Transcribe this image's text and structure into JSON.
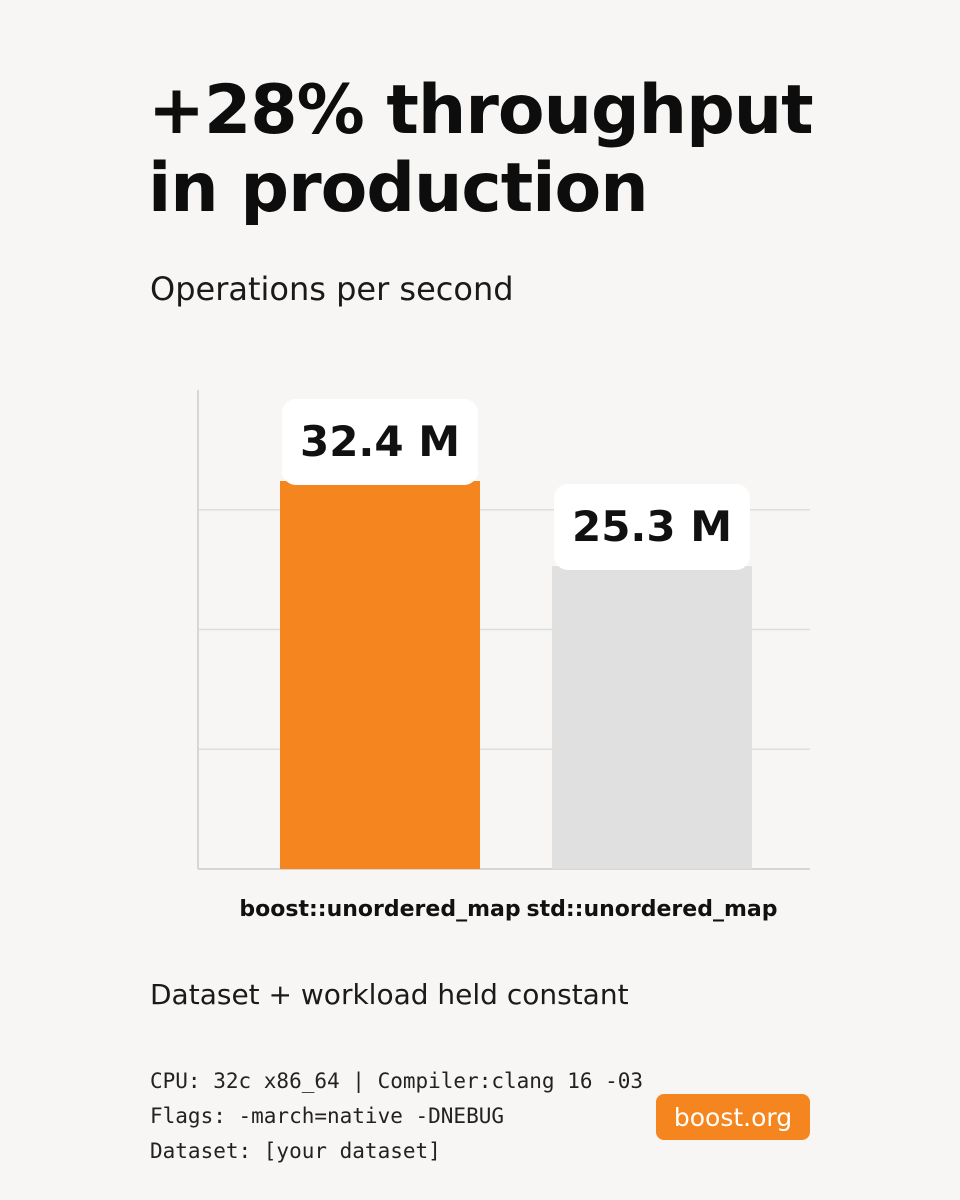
{
  "chart_data": {
    "type": "bar",
    "title": [
      "+28% throughput",
      "in production"
    ],
    "subtitle": "Operations per second",
    "categories": [
      "boost::unordered_map",
      "std::unordered_map"
    ],
    "values": [
      32.4,
      25.3
    ],
    "value_labels": [
      "32.4 M",
      "25.3 M"
    ],
    "bar_colors": [
      "#f5861f",
      "#e0e0e0"
    ],
    "ylim": [
      0,
      40
    ],
    "grid": true,
    "y_ticks_shown": false,
    "legend": "none"
  },
  "footer": {
    "note": "Dataset + workload held constant",
    "specs": [
      "CPU: 32c x86_64 | Compiler:clang 16 -03",
      "Flags: -march=native -DNEBUG",
      "Dataset: [your dataset]"
    ],
    "brand": "boost.org",
    "brand_color": "#f5861f"
  }
}
